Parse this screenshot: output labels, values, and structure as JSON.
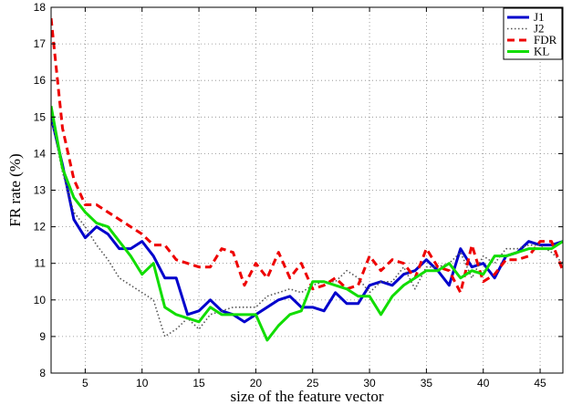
{
  "chart_data": {
    "type": "line",
    "title": "",
    "xlabel": "size of the feature vector",
    "ylabel": "FR rate (%)",
    "xlim": [
      2,
      47
    ],
    "ylim": [
      8,
      18
    ],
    "xticks": [
      5,
      10,
      15,
      20,
      25,
      30,
      35,
      40,
      45
    ],
    "yticks": [
      8,
      9,
      10,
      11,
      12,
      13,
      14,
      15,
      16,
      17,
      18
    ],
    "grid": true,
    "legend_position": "top-right",
    "x": [
      2,
      3,
      4,
      5,
      6,
      7,
      8,
      9,
      10,
      11,
      12,
      13,
      14,
      15,
      16,
      17,
      18,
      19,
      20,
      21,
      22,
      23,
      24,
      25,
      26,
      27,
      28,
      29,
      30,
      31,
      32,
      33,
      34,
      35,
      36,
      37,
      38,
      39,
      40,
      41,
      42,
      43,
      44,
      45,
      46,
      47
    ],
    "series": [
      {
        "name": "J1",
        "color": "#0000cc",
        "dash": "solid",
        "values": [
          15.0,
          13.7,
          12.2,
          11.7,
          12.0,
          11.8,
          11.4,
          11.4,
          11.6,
          11.2,
          10.6,
          10.6,
          9.6,
          9.7,
          10.0,
          9.7,
          9.6,
          9.4,
          9.6,
          9.8,
          10.0,
          10.1,
          9.8,
          9.8,
          9.7,
          10.2,
          9.9,
          9.9,
          10.4,
          10.5,
          10.4,
          10.7,
          10.8,
          11.1,
          10.8,
          10.4,
          11.4,
          10.9,
          11.0,
          10.6,
          11.2,
          11.3,
          11.6,
          11.5,
          11.5,
          11.6
        ]
      },
      {
        "name": "J2",
        "color": "#555555",
        "dash": "dotted",
        "values": [
          15.0,
          13.5,
          12.4,
          12.0,
          11.5,
          11.1,
          10.6,
          10.4,
          10.2,
          10.0,
          9.0,
          9.2,
          9.5,
          9.2,
          9.6,
          9.7,
          9.8,
          9.8,
          9.8,
          10.1,
          10.2,
          10.3,
          10.2,
          10.4,
          10.5,
          10.5,
          10.8,
          10.6,
          10.2,
          10.5,
          10.5,
          10.9,
          10.3,
          10.9,
          10.9,
          11.0,
          11.3,
          10.6,
          11.2,
          11.0,
          11.4,
          11.4,
          11.5,
          11.5,
          11.3,
          11.0
        ]
      },
      {
        "name": "FDR",
        "color": "#ee0000",
        "dash": "dashed",
        "values": [
          17.7,
          14.7,
          13.3,
          12.6,
          12.6,
          12.4,
          12.2,
          12.0,
          11.8,
          11.5,
          11.5,
          11.1,
          11.0,
          10.9,
          10.9,
          11.4,
          11.3,
          10.4,
          11.0,
          10.6,
          11.3,
          10.6,
          11.0,
          10.3,
          10.4,
          10.6,
          10.3,
          10.4,
          11.2,
          10.8,
          11.1,
          11.0,
          10.6,
          11.4,
          10.9,
          10.8,
          10.2,
          11.5,
          10.5,
          10.7,
          11.1,
          11.1,
          11.2,
          11.6,
          11.6,
          10.8
        ]
      },
      {
        "name": "KL",
        "color": "#11dd00",
        "dash": "solid",
        "values": [
          15.3,
          13.6,
          12.8,
          12.4,
          12.1,
          12.0,
          11.6,
          11.2,
          10.7,
          11.0,
          9.8,
          9.6,
          9.5,
          9.4,
          9.8,
          9.6,
          9.6,
          9.6,
          9.6,
          8.9,
          9.3,
          9.6,
          9.7,
          10.5,
          10.5,
          10.4,
          10.3,
          10.1,
          10.1,
          9.6,
          10.1,
          10.4,
          10.6,
          10.8,
          10.8,
          11.0,
          10.6,
          10.8,
          10.7,
          11.2,
          11.2,
          11.3,
          11.4,
          11.4,
          11.4,
          11.6
        ]
      }
    ]
  }
}
